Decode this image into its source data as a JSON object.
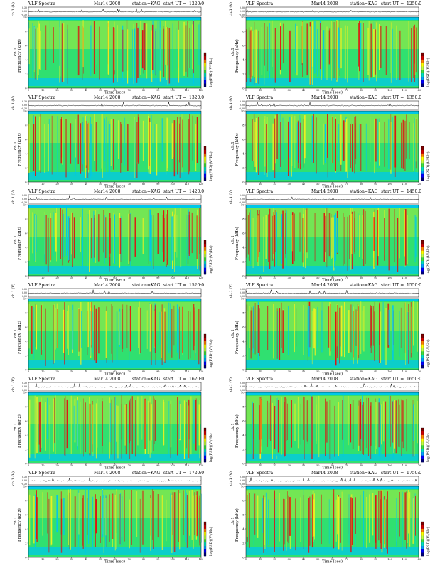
{
  "page": {
    "header": {
      "product": "VLF Spectra",
      "date": "Mar14 2008",
      "station_label": "station=KAG",
      "start_label": "start  UT  ="
    },
    "labels": {
      "ch1_axis": "ch.1 (V)",
      "freq_axis": "Frequency  (kHz)",
      "ch1_side": "ch.1",
      "time_axis": "Time  (sec)",
      "colorbar_label": "log(PSD)(V²/Hz)"
    },
    "panels": [
      {
        "start_ut": "1220:0"
      },
      {
        "start_ut": "1250:0"
      },
      {
        "start_ut": "1320:0"
      },
      {
        "start_ut": "1350:0"
      },
      {
        "start_ut": "1420:0"
      },
      {
        "start_ut": "1450:0"
      },
      {
        "start_ut": "1520:0"
      },
      {
        "start_ut": "1550:0"
      },
      {
        "start_ut": "1620:0"
      },
      {
        "start_ut": "1650:0"
      },
      {
        "start_ut": "1720:0"
      },
      {
        "start_ut": "1750:0"
      }
    ]
  },
  "chart_data": {
    "type": "heatmap",
    "layout": "6 rows x 2 columns of spectrogram panels",
    "x": {
      "label": "Time  (sec)",
      "range": [
        0,
        120
      ],
      "ticks": [
        0,
        10,
        20,
        30,
        40,
        50,
        60,
        70,
        80,
        90,
        100,
        110,
        120
      ]
    },
    "y": {
      "label": "Frequency  (kHz)",
      "range": [
        0,
        10
      ],
      "ticks": [
        0,
        2,
        4,
        6,
        8,
        10
      ]
    },
    "waveform_y": {
      "label": "ch.1 (V)",
      "range": [
        -0.3,
        0.3
      ],
      "ticks": [
        "0.30",
        "0.00",
        "-0.30"
      ]
    },
    "colorbar": {
      "label": "log(PSD)(V²/Hz)",
      "colors": [
        "#000080",
        "#0000ff",
        "#00a0ff",
        "#00e0c0",
        "#40e040",
        "#c0ff40",
        "#ffff00",
        "#ff8000",
        "#d00000",
        "#800000"
      ]
    },
    "palette": {
      "low": "#00c8e8",
      "mid": "#30e070",
      "high": "#f0f020",
      "hot": "#e01010"
    }
  }
}
